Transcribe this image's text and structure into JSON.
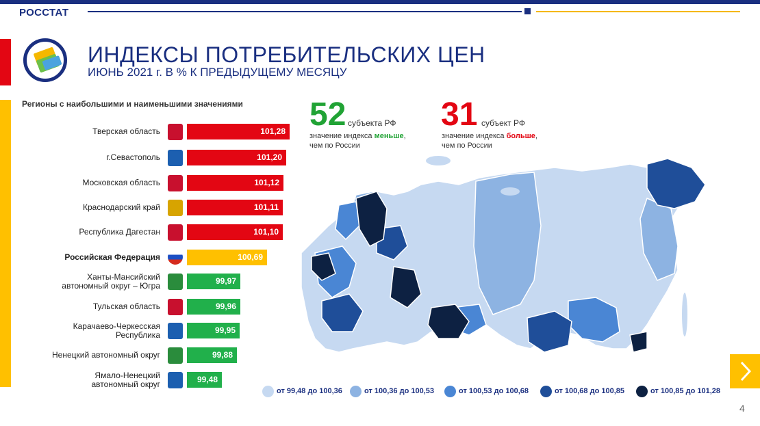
{
  "header": {
    "brand": "РОССТАТ"
  },
  "title": "ИНДЕКСЫ ПОТРЕБИТЕЛЬСКИХ ЦЕН",
  "subtitle": "ИЮНЬ 2021 г. В % К ПРЕДЫДУЩЕМУ МЕСЯЦУ",
  "section_title": "Регионы с наибольшими и наименьшими значениями",
  "stats": {
    "less": {
      "number": "52",
      "unit": "субъекта РФ",
      "desc_pre": "значение индекса ",
      "desc_word": "меньше",
      "desc_post": ",",
      "desc_line2": "чем по России",
      "color": "#21a335"
    },
    "more": {
      "number": "31",
      "unit": "субъект РФ",
      "desc_pre": "значение индекса ",
      "desc_word": "больше",
      "desc_post": ",",
      "desc_line2": "чем по России",
      "color": "#e30613"
    }
  },
  "colors": {
    "high": "#e30613",
    "russia": "#ffc000",
    "low": "#21b04b",
    "brand": "#1a2f80"
  },
  "chart_data": {
    "type": "bar",
    "orientation": "horizontal",
    "title": "Регионы с наибольшими и наименьшими значениями",
    "categories": [
      "Тверская область",
      "г.Севастополь",
      "Московская область",
      "Краснодарский край",
      "Республика Дагестан",
      "Российская Федерация",
      "Ханты-Мансийский автономный округ – Югра",
      "Тульская область",
      "Карачаево-Черкесская Республика",
      "Ненецкий автономный округ",
      "Ямало-Ненецкий автономный округ"
    ],
    "labels": [
      [
        "Тверская область"
      ],
      [
        "г.Севастополь"
      ],
      [
        "Московская область"
      ],
      [
        "Краснодарский край"
      ],
      [
        "Республика Дагестан"
      ],
      [
        "Российская Федерация"
      ],
      [
        "Ханты-Мансийский",
        "автономный округ – Югра"
      ],
      [
        "Тульская область"
      ],
      [
        "Карачаево-Черкесская",
        "Республика"
      ],
      [
        "Ненецкий автономный округ"
      ],
      [
        "Ямало-Ненецкий",
        "автономный округ"
      ]
    ],
    "values": [
      101.28,
      101.2,
      101.12,
      101.11,
      101.1,
      100.69,
      99.97,
      99.96,
      99.95,
      99.88,
      99.48
    ],
    "value_labels": [
      "101,28",
      "101,20",
      "101,12",
      "101,11",
      "101,10",
      "100,69",
      "99,97",
      "99,96",
      "99,95",
      "99,88",
      "99,48"
    ],
    "groups": [
      "high",
      "high",
      "high",
      "high",
      "high",
      "russia",
      "low",
      "low",
      "low",
      "low",
      "low"
    ],
    "emblem_colors": [
      "#c8102e",
      "#1c5fb0",
      "#c8102e",
      "#d7a400",
      "#c8102e",
      "#ffffff",
      "#2a8c3c",
      "#c8102e",
      "#1c5fb0",
      "#2a8c3c",
      "#1c5fb0"
    ]
  },
  "map_legend": [
    {
      "label": "от 99,48 до 100,36",
      "color": "#c6d9f1"
    },
    {
      "label": "от 100,36 до 100,53",
      "color": "#8db3e2"
    },
    {
      "label": "от 100,53 до 100,68",
      "color": "#4a86d4"
    },
    {
      "label": "от 100,68 до 100,85",
      "color": "#1f4e99"
    },
    {
      "label": "от 100,85 до 101,28",
      "color": "#0d2142"
    }
  ],
  "page_number": "4"
}
